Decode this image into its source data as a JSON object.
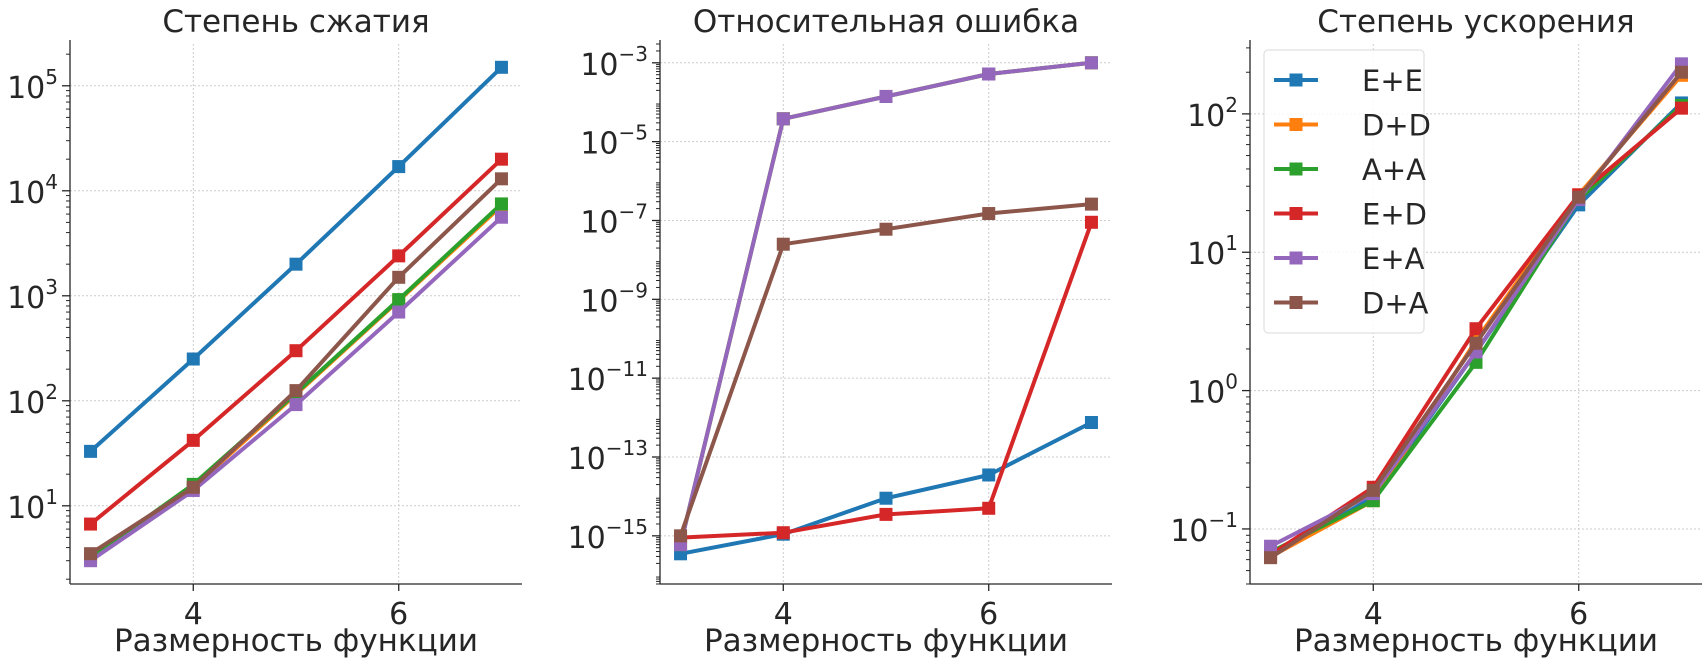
{
  "chart_data": [
    {
      "type": "line",
      "title": "Степень сжатия",
      "xlabel": "Размерность функции",
      "ylabel": "",
      "yscale": "log",
      "xlim": [
        2.8,
        7.2
      ],
      "ylim": [
        1.8,
        250000
      ],
      "x": [
        3,
        4,
        5,
        6,
        7
      ],
      "xticks": [
        {
          "value": 4,
          "label": "4"
        },
        {
          "value": 6,
          "label": "6"
        }
      ],
      "yticks": [
        {
          "value": 10,
          "base": "10",
          "exp": "1"
        },
        {
          "value": 100,
          "base": "10",
          "exp": "2"
        },
        {
          "value": 1000,
          "base": "10",
          "exp": "3"
        },
        {
          "value": 10000,
          "base": "10",
          "exp": "4"
        },
        {
          "value": 100000,
          "base": "10",
          "exp": "5"
        }
      ],
      "grid": true,
      "legend": "none",
      "series": [
        {
          "name": "E+E",
          "color": "#1f77b4",
          "values": [
            33,
            250,
            2000,
            17000,
            150000
          ]
        },
        {
          "name": "D+D",
          "color": "#ff7f0e",
          "values": [
            3.2,
            15,
            115,
            900,
            7200
          ]
        },
        {
          "name": "A+A",
          "color": "#2ca02c",
          "values": [
            3.2,
            16,
            118,
            920,
            7500
          ]
        },
        {
          "name": "E+D",
          "color": "#d62728",
          "values": [
            6.7,
            42,
            300,
            2400,
            20000
          ]
        },
        {
          "name": "E+A",
          "color": "#9467bd",
          "values": [
            3.0,
            14,
            92,
            700,
            5600
          ]
        },
        {
          "name": "D+A",
          "color": "#8c564b",
          "values": [
            3.5,
            15,
            125,
            1500,
            13000
          ]
        }
      ]
    },
    {
      "type": "line",
      "title": "Относительная ошибка",
      "xlabel": "Размерность функции",
      "ylabel": "",
      "yscale": "log",
      "xlim": [
        2.8,
        7.2
      ],
      "ylim": [
        6e-17,
        0.003
      ],
      "x": [
        3,
        4,
        5,
        6,
        7
      ],
      "xticks": [
        {
          "value": 4,
          "label": "4"
        },
        {
          "value": 6,
          "label": "6"
        }
      ],
      "yticks": [
        {
          "value": 1e-15,
          "base": "10",
          "exp": "−15"
        },
        {
          "value": 1e-13,
          "base": "10",
          "exp": "−13"
        },
        {
          "value": 1e-11,
          "base": "10",
          "exp": "−11"
        },
        {
          "value": 1e-09,
          "base": "10",
          "exp": "−9"
        },
        {
          "value": 1e-07,
          "base": "10",
          "exp": "−7"
        },
        {
          "value": 1e-05,
          "base": "10",
          "exp": "−5"
        },
        {
          "value": 0.001,
          "base": "10",
          "exp": "−3"
        }
      ],
      "grid": true,
      "legend": "none",
      "series": [
        {
          "name": "E+E",
          "color": "#1f77b4",
          "values": [
            3.5e-16,
            1.1e-15,
            9e-15,
            3.5e-14,
            7.5e-13
          ]
        },
        {
          "name": "D+D",
          "color": "#ff7f0e",
          "values": [
            6e-16,
            3.8e-05,
            0.00014,
            0.00052,
            0.001
          ]
        },
        {
          "name": "A+A",
          "color": "#2ca02c",
          "values": [
            6e-16,
            3.8e-05,
            0.00014,
            0.00052,
            0.001
          ]
        },
        {
          "name": "E+D",
          "color": "#d62728",
          "values": [
            9e-16,
            1.2e-15,
            3.5e-15,
            5e-15,
            9e-08
          ]
        },
        {
          "name": "E+A",
          "color": "#9467bd",
          "values": [
            6e-16,
            3.8e-05,
            0.00014,
            0.00052,
            0.001
          ]
        },
        {
          "name": "D+A",
          "color": "#8c564b",
          "values": [
            1e-15,
            2.5e-08,
            6e-08,
            1.5e-07,
            2.6e-07
          ]
        }
      ]
    },
    {
      "type": "line",
      "title": "Степень ускорения",
      "xlabel": "Размерность функции",
      "ylabel": "",
      "yscale": "log",
      "xlim": [
        2.8,
        7.2
      ],
      "ylim": [
        0.04,
        320
      ],
      "x": [
        3,
        4,
        5,
        6,
        7
      ],
      "xticks": [
        {
          "value": 4,
          "label": "4"
        },
        {
          "value": 6,
          "label": "6"
        }
      ],
      "yticks": [
        {
          "value": 0.1,
          "base": "10",
          "exp": "−1"
        },
        {
          "value": 1,
          "base": "10",
          "exp": "0"
        },
        {
          "value": 10,
          "base": "10",
          "exp": "1"
        },
        {
          "value": 100,
          "base": "10",
          "exp": "2"
        }
      ],
      "grid": true,
      "legend": "top-left",
      "series": [
        {
          "name": "E+E",
          "color": "#1f77b4",
          "values": [
            0.063,
            0.17,
            1.9,
            22,
            120
          ]
        },
        {
          "name": "D+D",
          "color": "#ff7f0e",
          "values": [
            0.063,
            0.16,
            2.3,
            26,
            190
          ]
        },
        {
          "name": "A+A",
          "color": "#2ca02c",
          "values": [
            0.068,
            0.16,
            1.6,
            24,
            115
          ]
        },
        {
          "name": "E+D",
          "color": "#d62728",
          "values": [
            0.065,
            0.2,
            2.8,
            26,
            110
          ]
        },
        {
          "name": "E+A",
          "color": "#9467bd",
          "values": [
            0.075,
            0.18,
            1.9,
            24,
            230
          ]
        },
        {
          "name": "D+A",
          "color": "#8c564b",
          "values": [
            0.062,
            0.19,
            2.2,
            25,
            200
          ]
        }
      ]
    }
  ]
}
